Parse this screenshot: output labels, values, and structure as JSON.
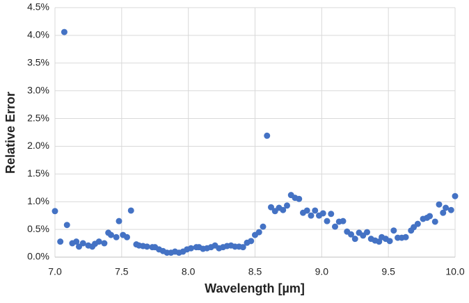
{
  "chart_data": {
    "type": "scatter",
    "x_label": "Wavelength [µm]",
    "y_label": "Relative Error",
    "color": "#4472c4",
    "grid": true,
    "xlim": [
      7.0,
      10.0
    ],
    "xticks": [
      {
        "value": 7.0,
        "label": "7.0"
      },
      {
        "value": 7.5,
        "label": "7.5"
      },
      {
        "value": 8.0,
        "label": "8.0"
      },
      {
        "value": 8.5,
        "label": "8.5"
      },
      {
        "value": 9.0,
        "label": "9.0"
      },
      {
        "value": 9.5,
        "label": "9.5"
      },
      {
        "value": 10.0,
        "label": "10.0"
      }
    ],
    "ylim": [
      0,
      4.5
    ],
    "yticks": [
      {
        "value": 0,
        "label": "0.0%"
      },
      {
        "value": 0.5,
        "label": "0.5%"
      },
      {
        "value": 1.0,
        "label": "1.0%"
      },
      {
        "value": 1.5,
        "label": "1.5%"
      },
      {
        "value": 2.0,
        "label": "2.0%"
      },
      {
        "value": 2.5,
        "label": "2.5%"
      },
      {
        "value": 3.0,
        "label": "3.0%"
      },
      {
        "value": 3.5,
        "label": "3.5%"
      },
      {
        "value": 4.0,
        "label": "4.0%"
      },
      {
        "value": 4.5,
        "label": "4.5%"
      }
    ],
    "x": [
      7.0,
      7.04,
      7.07,
      7.09,
      7.13,
      7.16,
      7.18,
      7.21,
      7.25,
      7.28,
      7.3,
      7.33,
      7.37,
      7.4,
      7.42,
      7.46,
      7.48,
      7.51,
      7.54,
      7.57,
      7.61,
      7.63,
      7.66,
      7.69,
      7.73,
      7.75,
      7.78,
      7.81,
      7.84,
      7.87,
      7.9,
      7.93,
      7.96,
      7.99,
      8.02,
      8.06,
      8.08,
      8.11,
      8.14,
      8.17,
      8.2,
      8.23,
      8.26,
      8.29,
      8.32,
      8.35,
      8.38,
      8.41,
      8.44,
      8.47,
      8.5,
      8.53,
      8.56,
      8.59,
      8.62,
      8.65,
      8.68,
      8.71,
      8.74,
      8.77,
      8.8,
      8.83,
      8.86,
      8.89,
      8.92,
      8.95,
      8.98,
      9.01,
      9.04,
      9.07,
      9.1,
      9.13,
      9.16,
      9.19,
      9.22,
      9.25,
      9.28,
      9.31,
      9.34,
      9.37,
      9.4,
      9.43,
      9.45,
      9.48,
      9.51,
      9.54,
      9.57,
      9.6,
      9.63,
      9.67,
      9.69,
      9.72,
      9.76,
      9.79,
      9.81,
      9.85,
      9.88,
      9.91,
      9.93,
      9.97,
      10.0
    ],
    "values": [
      0.83,
      0.28,
      4.06,
      0.58,
      0.25,
      0.28,
      0.19,
      0.25,
      0.21,
      0.19,
      0.24,
      0.28,
      0.25,
      0.44,
      0.4,
      0.36,
      0.65,
      0.4,
      0.36,
      0.84,
      0.23,
      0.21,
      0.2,
      0.19,
      0.18,
      0.18,
      0.14,
      0.11,
      0.08,
      0.08,
      0.1,
      0.08,
      0.1,
      0.14,
      0.16,
      0.18,
      0.18,
      0.15,
      0.16,
      0.18,
      0.21,
      0.16,
      0.18,
      0.2,
      0.21,
      0.19,
      0.19,
      0.18,
      0.26,
      0.29,
      0.4,
      0.45,
      0.55,
      2.19,
      0.9,
      0.83,
      0.89,
      0.85,
      0.93,
      1.12,
      1.07,
      1.05,
      0.8,
      0.84,
      0.75,
      0.84,
      0.75,
      0.79,
      0.65,
      0.78,
      0.55,
      0.64,
      0.65,
      0.46,
      0.41,
      0.33,
      0.44,
      0.39,
      0.45,
      0.33,
      0.3,
      0.28,
      0.36,
      0.33,
      0.29,
      0.48,
      0.35,
      0.35,
      0.36,
      0.48,
      0.54,
      0.6,
      0.69,
      0.71,
      0.74,
      0.64,
      0.95,
      0.8,
      0.89,
      0.85,
      1.1
    ]
  }
}
